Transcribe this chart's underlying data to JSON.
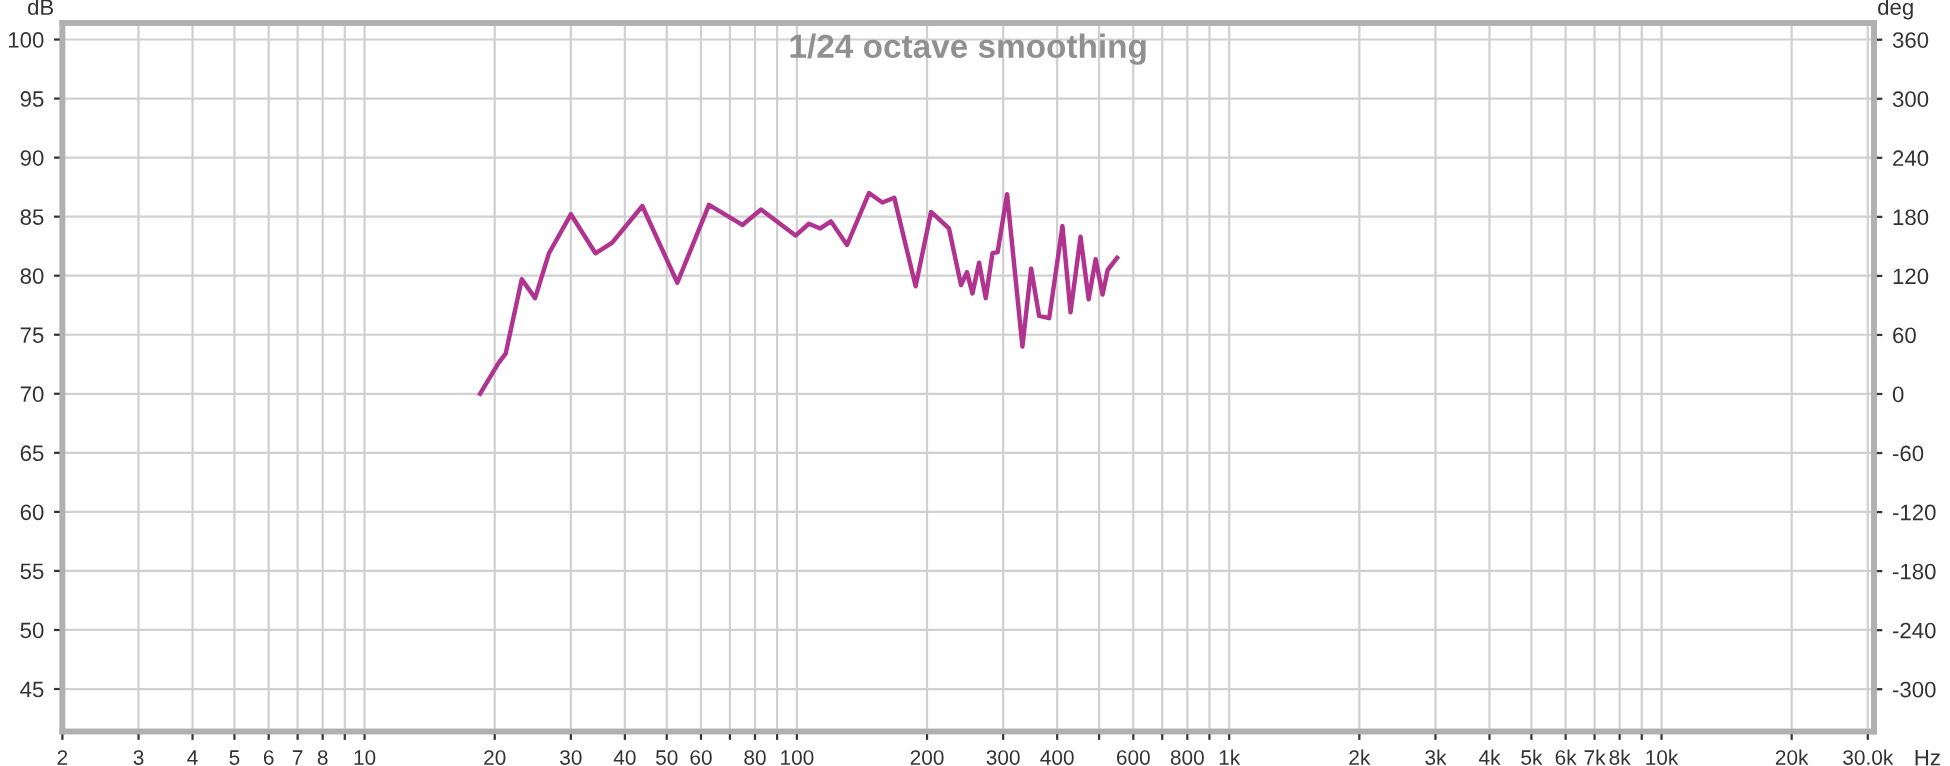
{
  "chart_data": {
    "type": "line",
    "title": "1/24 octave smoothing",
    "xlabel": "Hz",
    "ylabel": "dB",
    "y2label": "deg",
    "log": "x",
    "grid": true,
    "legend": false,
    "marker": "none",
    "line_style": "solid",
    "x": [
      18.5,
      20.4,
      21.2,
      23.1,
      24.8,
      26.7,
      30.0,
      34.2,
      37.4,
      43.9,
      52.9,
      62.6,
      74.8,
      82.6,
      99.3,
      106.6,
      113.3,
      119.9,
      130.6,
      146.8,
      157.7,
      168.0,
      188.2,
      204.3,
      224.8,
      239.7,
      247.4,
      254.7,
      263.9,
      273.4,
      283.4,
      291.3,
      306.3,
      332.4,
      348.2,
      363.3,
      383.3,
      411.4,
      429.5,
      453.0,
      473.0,
      491.0,
      509.3,
      523.6,
      550.3
    ],
    "series": [
      {
        "color": "#b0338f",
        "values": [
          70.0,
          72.6,
          73.4,
          79.7,
          78.1,
          81.9,
          85.2,
          81.9,
          82.8,
          85.9,
          79.4,
          86.0,
          84.3,
          85.6,
          83.4,
          84.4,
          84.0,
          84.6,
          82.6,
          87.0,
          86.2,
          86.6,
          79.1,
          85.4,
          84.0,
          79.2,
          80.3,
          78.5,
          81.1,
          78.1,
          81.9,
          82.0,
          86.9,
          74.0,
          80.6,
          76.6,
          76.4,
          84.2,
          76.9,
          83.3,
          78.0,
          81.4,
          78.4,
          80.5,
          81.5
        ]
      }
    ],
    "xlim": [
      2,
      31000
    ],
    "ylim": [
      41.4,
      101.4
    ],
    "y2lim": [
      -343,
      377
    ],
    "xticks": [
      2,
      3,
      4,
      5,
      6,
      7,
      8,
      {
        "value": 9,
        "label": null
      },
      10,
      20,
      30,
      40,
      50,
      60,
      {
        "value": 70,
        "label": null
      },
      80,
      {
        "value": 90,
        "label": null
      },
      100,
      200,
      300,
      400,
      {
        "value": 500,
        "label": null
      },
      600,
      {
        "value": 700,
        "label": null
      },
      800,
      {
        "value": 900,
        "label": null
      },
      {
        "value": 1000,
        "label": "1k"
      },
      {
        "value": 2000,
        "label": "2k"
      },
      {
        "value": 3000,
        "label": "3k"
      },
      {
        "value": 4000,
        "label": "4k"
      },
      {
        "value": 5000,
        "label": "5k"
      },
      {
        "value": 6000,
        "label": "6k"
      },
      {
        "value": 7000,
        "label": "7k"
      },
      {
        "value": 8000,
        "label": "8k"
      },
      {
        "value": 9000,
        "label": null
      },
      {
        "value": 10000,
        "label": "10k"
      },
      {
        "value": 20000,
        "label": "20k"
      },
      {
        "value": 30000,
        "label": "30.0k"
      }
    ],
    "yticks": [
      45,
      50,
      55,
      60,
      65,
      70,
      75,
      80,
      85,
      90,
      95,
      100
    ],
    "y2ticks": [
      -300,
      -240,
      -180,
      -120,
      -60,
      0,
      60,
      120,
      180,
      240,
      300,
      360
    ]
  }
}
